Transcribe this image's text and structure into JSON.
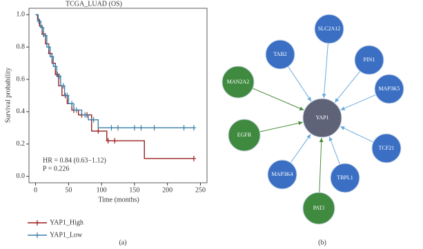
{
  "chart_data": {
    "type": "line",
    "title": "TCGA_LUAD (OS)",
    "xlabel": "Time (months)",
    "ylabel": "Survival probability",
    "xlim": [
      -10,
      260
    ],
    "ylim": [
      -0.04,
      1.04
    ],
    "xticks": [
      0,
      50,
      100,
      150,
      200,
      250
    ],
    "yticks": [
      {
        "value": 0,
        "label": "0.0"
      },
      {
        "value": 0.2,
        "label": "0.2"
      },
      {
        "value": 0.4,
        "label": "0.4"
      },
      {
        "value": 0.6,
        "label": "0.6"
      },
      {
        "value": 0.8,
        "label": "0.8"
      },
      {
        "value": 1,
        "label": "1.0"
      }
    ],
    "annotations": [
      "HR = 0.84 (0.63−1.12)",
      "P = 0.226"
    ],
    "legend": "bottom-left",
    "series": [
      {
        "name": "YAP1_High",
        "color": "#9b1c1c",
        "x": [
          0,
          3,
          3,
          6,
          6,
          10,
          10,
          15,
          15,
          20,
          20,
          25,
          25,
          30,
          30,
          35,
          35,
          40,
          40,
          48,
          48,
          55,
          55,
          65,
          65,
          85,
          85,
          108,
          108,
          165,
          165,
          240
        ],
        "values": [
          1,
          1,
          0.97,
          0.97,
          0.93,
          0.93,
          0.88,
          0.88,
          0.82,
          0.82,
          0.76,
          0.76,
          0.7,
          0.7,
          0.63,
          0.63,
          0.56,
          0.56,
          0.5,
          0.5,
          0.45,
          0.45,
          0.41,
          0.41,
          0.38,
          0.38,
          0.28,
          0.28,
          0.22,
          0.22,
          0.11,
          0.11
        ],
        "censor": {
          "x": [
            12,
            22,
            33,
            45,
            58,
            70,
            78,
            95,
            110,
            120,
            240
          ],
          "values": [
            0.88,
            0.76,
            0.63,
            0.5,
            0.41,
            0.38,
            0.38,
            0.28,
            0.22,
            0.22,
            0.11
          ]
        }
      },
      {
        "name": "YAP1_Low",
        "color": "#3a7fa8",
        "x": [
          0,
          4,
          4,
          8,
          8,
          12,
          12,
          17,
          17,
          22,
          22,
          27,
          27,
          32,
          32,
          38,
          38,
          44,
          44,
          50,
          50,
          58,
          58,
          70,
          70,
          80,
          80,
          95,
          95,
          240
        ],
        "values": [
          1,
          1,
          0.96,
          0.96,
          0.92,
          0.92,
          0.87,
          0.87,
          0.8,
          0.8,
          0.74,
          0.74,
          0.68,
          0.68,
          0.62,
          0.62,
          0.56,
          0.56,
          0.5,
          0.5,
          0.45,
          0.45,
          0.41,
          0.41,
          0.38,
          0.38,
          0.35,
          0.35,
          0.3,
          0.3
        ],
        "censor": {
          "x": [
            5,
            10,
            15,
            20,
            25,
            30,
            36,
            42,
            48,
            55,
            62,
            75,
            88,
            115,
            125,
            150,
            160,
            180,
            225,
            240
          ],
          "values": [
            0.96,
            0.92,
            0.87,
            0.8,
            0.74,
            0.68,
            0.62,
            0.56,
            0.5,
            0.45,
            0.41,
            0.38,
            0.35,
            0.3,
            0.3,
            0.3,
            0.3,
            0.3,
            0.3,
            0.3
          ]
        }
      }
    ]
  },
  "network": {
    "center": {
      "label": "YAP1",
      "color": "#5f6378"
    },
    "nodes": [
      {
        "label": "SLC2A12",
        "color": "#3a6fc4",
        "edge_color": "#6aa8dc"
      },
      {
        "label": "TAB2",
        "color": "#3a6fc4",
        "edge_color": "#6aa8dc"
      },
      {
        "label": "PIN1",
        "color": "#3a6fc4",
        "edge_color": "#6aa8dc"
      },
      {
        "label": "MAN2A2",
        "color": "#3f8a3f",
        "edge_color": "#4b8b3b"
      },
      {
        "label": "MAP3K5",
        "color": "#3a6fc4",
        "edge_color": "#6aa8dc"
      },
      {
        "label": "EGFR",
        "color": "#3f8a3f",
        "edge_color": "#4b8b3b"
      },
      {
        "label": "TCF21",
        "color": "#3a6fc4",
        "edge_color": "#6aa8dc"
      },
      {
        "label": "MAP3K4",
        "color": "#3a6fc4",
        "edge_color": "#6aa8dc"
      },
      {
        "label": "TBPL1",
        "color": "#3a6fc4",
        "edge_color": "#6aa8dc"
      },
      {
        "label": "PATJ",
        "color": "#3f8a3f",
        "edge_color": "#4b8b3b"
      }
    ]
  },
  "panel_labels": [
    "(a)",
    "(b)"
  ]
}
